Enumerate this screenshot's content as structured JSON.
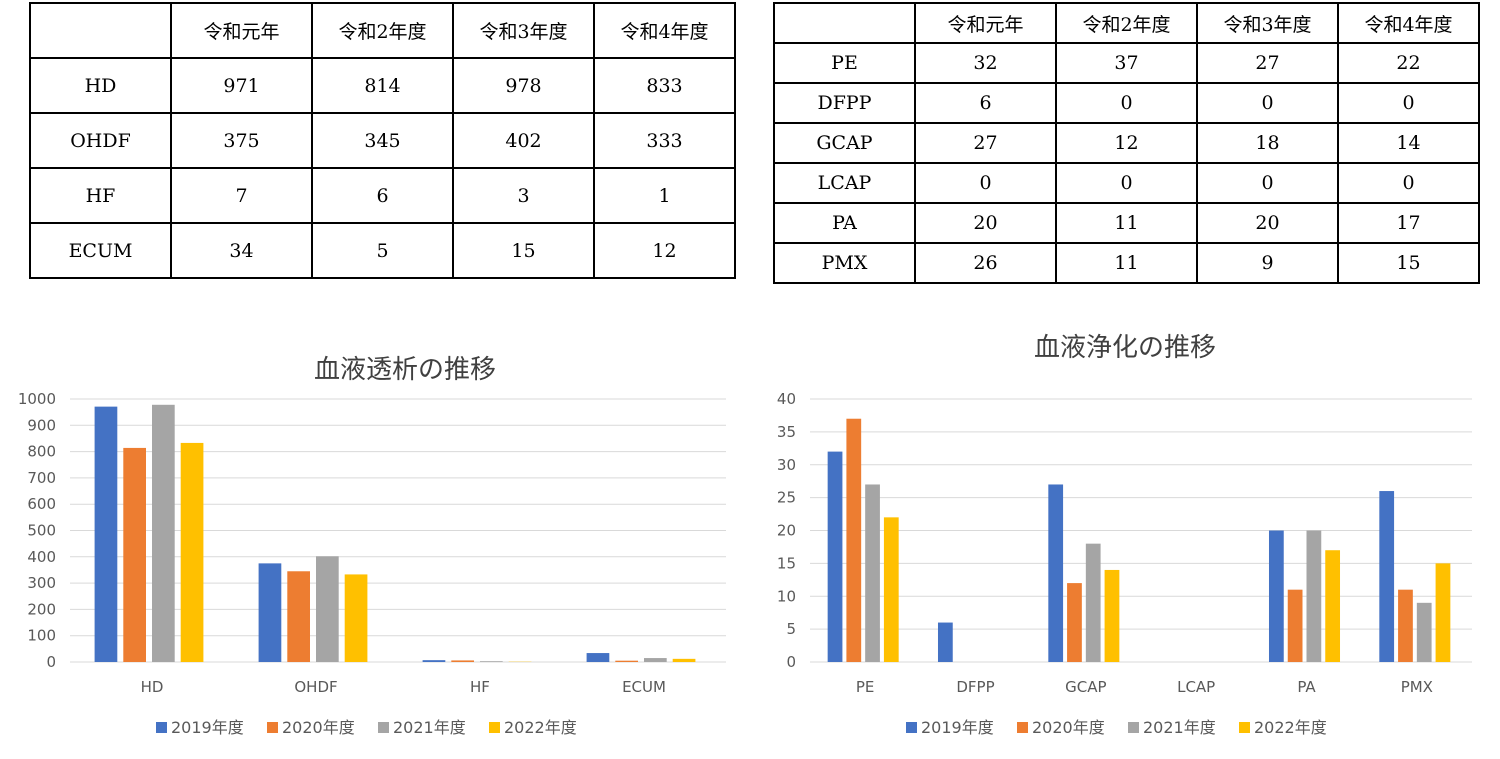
{
  "dialysis_table": {
    "headers": [
      "",
      "令和元年",
      "令和2年度",
      "令和3年度",
      "令和4年度"
    ],
    "rows": [
      [
        "HD",
        "971",
        "814",
        "978",
        "833"
      ],
      [
        "OHDF",
        "375",
        "345",
        "402",
        "333"
      ],
      [
        "HF",
        "7",
        "6",
        "3",
        "1"
      ],
      [
        "ECUM",
        "34",
        "5",
        "15",
        "12"
      ]
    ]
  },
  "purification_table": {
    "headers": [
      "",
      "令和元年",
      "令和2年度",
      "令和3年度",
      "令和4年度"
    ],
    "rows": [
      [
        "PE",
        "32",
        "37",
        "27",
        "22"
      ],
      [
        "DFPP",
        "6",
        "0",
        "0",
        "0"
      ],
      [
        "GCAP",
        "27",
        "12",
        "18",
        "14"
      ],
      [
        "LCAP",
        "0",
        "0",
        "0",
        "0"
      ],
      [
        "PA",
        "20",
        "11",
        "20",
        "17"
      ],
      [
        "PMX",
        "26",
        "11",
        "9",
        "15"
      ]
    ]
  },
  "colors": [
    "#4472c4",
    "#ed7d31",
    "#a5a5a5",
    "#ffc000"
  ],
  "chart_data": [
    {
      "type": "bar",
      "title": "血液透析の推移",
      "categories": [
        "HD",
        "OHDF",
        "HF",
        "ECUM"
      ],
      "ylim": [
        0,
        1000
      ],
      "yticks": [
        0,
        100,
        200,
        300,
        400,
        500,
        600,
        700,
        800,
        900,
        1000
      ],
      "grid": true,
      "legend": "bottom",
      "series": [
        {
          "name": "2019年度",
          "values": [
            971,
            375,
            7,
            34
          ]
        },
        {
          "name": "2020年度",
          "values": [
            814,
            345,
            6,
            5
          ]
        },
        {
          "name": "2021年度",
          "values": [
            978,
            402,
            3,
            15
          ]
        },
        {
          "name": "2022年度",
          "values": [
            833,
            333,
            1,
            12
          ]
        }
      ]
    },
    {
      "type": "bar",
      "title": "血液浄化の推移",
      "categories": [
        "PE",
        "DFPP",
        "GCAP",
        "LCAP",
        "PA",
        "PMX"
      ],
      "ylim": [
        0,
        40
      ],
      "yticks": [
        0,
        5,
        10,
        15,
        20,
        25,
        30,
        35,
        40
      ],
      "grid": true,
      "legend": "bottom",
      "series": [
        {
          "name": "2019年度",
          "values": [
            32,
            6,
            27,
            0,
            20,
            26
          ]
        },
        {
          "name": "2020年度",
          "values": [
            37,
            0,
            12,
            0,
            11,
            11
          ]
        },
        {
          "name": "2021年度",
          "values": [
            27,
            0,
            18,
            0,
            20,
            9
          ]
        },
        {
          "name": "2022年度",
          "values": [
            22,
            0,
            14,
            0,
            17,
            15
          ]
        }
      ]
    }
  ]
}
